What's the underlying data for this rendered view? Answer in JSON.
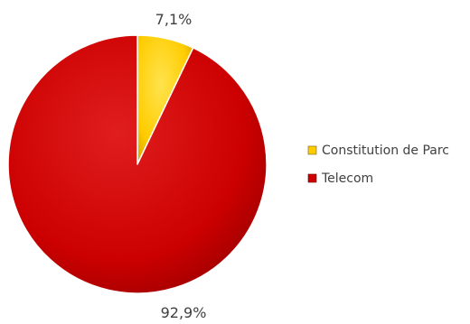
{
  "chart_data": {
    "type": "pie",
    "categories": [
      "Constitution de Parc",
      "Telecom"
    ],
    "values": [
      7.1,
      92.9
    ],
    "value_labels": [
      "7,1%",
      "92,9%"
    ],
    "colors": [
      "#ffcc00",
      "#cc0000"
    ],
    "start_angle_deg": 0,
    "direction": "clockwise",
    "legend": {
      "placement": "right",
      "entries": [
        "Constitution de Parc",
        "Telecom"
      ]
    },
    "title": ""
  }
}
